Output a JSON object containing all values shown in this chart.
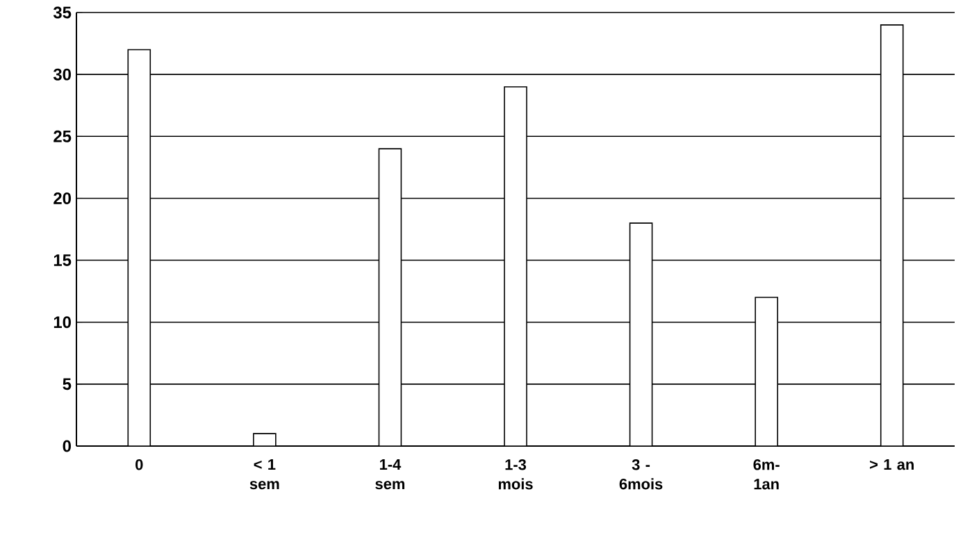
{
  "chart_data": {
    "type": "bar",
    "categories": [
      "0",
      "< 1 sem",
      "1-4 sem",
      "1-3 mois",
      "3 - 6mois",
      "6m-1an",
      "> 1 an"
    ],
    "values": [
      32,
      1,
      24,
      29,
      18,
      12,
      34
    ],
    "color": "#ffffff",
    "ylim": [
      0,
      35
    ],
    "yticks": [
      0,
      5,
      10,
      15,
      20,
      25,
      30,
      35
    ],
    "grid": "y"
  }
}
